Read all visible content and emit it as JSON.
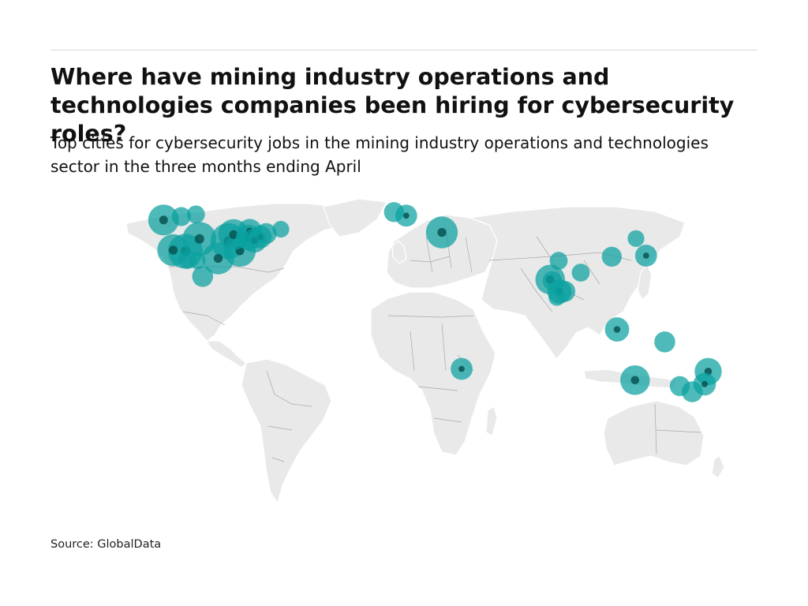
{
  "header": {
    "title": "Where have mining industry operations and technologies companies been hiring for cybersecurity roles?",
    "subtitle": "Top cities for cybersecurity jobs in the mining industry operations and technologies sector in the three months ending April"
  },
  "footer": {
    "source": "Source: GlobalData"
  },
  "colors": {
    "bubble": "#0aa1a0",
    "bubble_dark": "#064e4e",
    "land": "#e9e9e9"
  },
  "map_data": {
    "type": "bubble-map",
    "cities": [
      {
        "lon": -123.1,
        "lat": 49.3,
        "size": 22
      },
      {
        "lon": -114.1,
        "lat": 51.0,
        "size": 6
      },
      {
        "lon": -106.7,
        "lat": 52.1,
        "size": 5
      },
      {
        "lon": -118.2,
        "lat": 34.0,
        "size": 24
      },
      {
        "lon": -112.0,
        "lat": 33.4,
        "size": 30
      },
      {
        "lon": -104.9,
        "lat": 39.7,
        "size": 28
      },
      {
        "lon": -95.4,
        "lat": 29.8,
        "size": 24
      },
      {
        "lon": -90.2,
        "lat": 38.6,
        "size": 32
      },
      {
        "lon": -84.4,
        "lat": 33.7,
        "size": 24
      },
      {
        "lon": -87.6,
        "lat": 41.9,
        "size": 22
      },
      {
        "lon": -80.0,
        "lat": 40.4,
        "size": 14
      },
      {
        "lon": -79.4,
        "lat": 43.7,
        "size": 12
      },
      {
        "lon": -77.0,
        "lat": 38.9,
        "size": 12
      },
      {
        "lon": -74.0,
        "lat": 40.7,
        "size": 10
      },
      {
        "lon": -71.1,
        "lat": 42.4,
        "size": 8
      },
      {
        "lon": -63.6,
        "lat": 44.6,
        "size": 4
      },
      {
        "lon": -110.9,
        "lat": 29.1,
        "size": 5
      },
      {
        "lon": -106.1,
        "lat": 28.6,
        "size": 4
      },
      {
        "lon": -103.3,
        "lat": 20.7,
        "size": 8
      },
      {
        "lon": -6.3,
        "lat": 53.3,
        "size": 7
      },
      {
        "lon": -0.1,
        "lat": 51.5,
        "size": 9
      },
      {
        "lon": 18.0,
        "lat": 43.0,
        "size": 24
      },
      {
        "lon": 72.9,
        "lat": 19.1,
        "size": 20
      },
      {
        "lon": 77.6,
        "lat": 13.0,
        "size": 12
      },
      {
        "lon": 80.3,
        "lat": 13.1,
        "size": 8
      },
      {
        "lon": 73.9,
        "lat": 18.5,
        "size": 6
      },
      {
        "lon": 76.3,
        "lat": 10.0,
        "size": 4
      },
      {
        "lon": 77.2,
        "lat": 28.6,
        "size": 5
      },
      {
        "lon": 88.4,
        "lat": 22.6,
        "size": 5
      },
      {
        "lon": 116.4,
        "lat": 39.9,
        "size": 4
      },
      {
        "lon": 121.5,
        "lat": 31.2,
        "size": 9
      },
      {
        "lon": 104.1,
        "lat": 30.7,
        "size": 7
      },
      {
        "lon": 106.8,
        "lat": -6.2,
        "size": 12
      },
      {
        "lon": 28.0,
        "lat": -26.2,
        "size": 9
      },
      {
        "lon": 131.0,
        "lat": -12.5,
        "size": 8
      },
      {
        "lon": 115.9,
        "lat": -31.9,
        "size": 20
      },
      {
        "lon": 138.6,
        "lat": -34.9,
        "size": 7
      },
      {
        "lon": 153.0,
        "lat": -27.5,
        "size": 16
      },
      {
        "lon": 151.2,
        "lat": -33.9,
        "size": 10
      },
      {
        "lon": 144.9,
        "lat": -37.8,
        "size": 8
      }
    ]
  }
}
